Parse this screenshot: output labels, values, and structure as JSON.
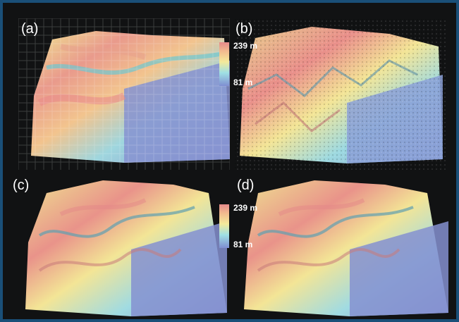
{
  "panels": [
    {
      "label": "(a)",
      "style": "coarse"
    },
    {
      "label": "(b)",
      "style": "noisy"
    },
    {
      "label": "(c)",
      "style": "smooth"
    },
    {
      "label": "(d)",
      "style": "smooth"
    }
  ],
  "legend_top": {
    "max_label": "239 m",
    "min_label": "81 m"
  },
  "legend_bottom": {
    "max_label": "239 m",
    "min_label": "81 m"
  },
  "colors": {
    "background": "#111213",
    "border": "#1a4f78",
    "high": "#e58a8a",
    "mid_high": "#f2b98e",
    "mid": "#f4ea9a",
    "mid_low": "#9fe0e4",
    "low": "#7f8ed2"
  }
}
